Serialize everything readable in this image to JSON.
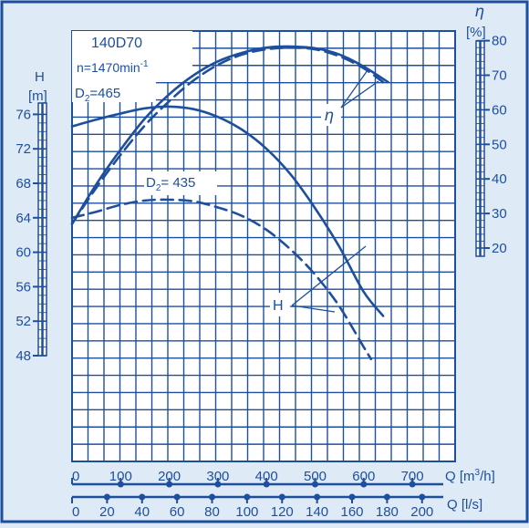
{
  "chart_data": {
    "type": "line",
    "title": "140D70",
    "subtitle": "n=1470min",
    "subtitle_sup": "-1",
    "colors": {
      "ink": "#1e4f9c",
      "paper": "#dfeaf7",
      "grid_bg": "#ffffff"
    },
    "grid": true,
    "x_axes": [
      {
        "label": "Q [m",
        "label_sup": "3",
        "label_suffix": "/h]",
        "range": [
          0,
          800
        ],
        "ticks": [
          0,
          100,
          200,
          300,
          400,
          500,
          600,
          700
        ]
      },
      {
        "label": "Q [l/s]",
        "range": [
          0,
          222.2
        ],
        "ticks": [
          0,
          20,
          40,
          60,
          80,
          100,
          120,
          140,
          160,
          180,
          200
        ]
      }
    ],
    "y_axes": [
      {
        "label_symbol": "H",
        "label_unit": "[m]",
        "range": [
          48,
          78
        ],
        "ticks": [
          48,
          52,
          56,
          60,
          64,
          68,
          72,
          76
        ]
      },
      {
        "label_symbol": "η",
        "label_unit": "[%]",
        "range": [
          20,
          80
        ],
        "ticks": [
          20,
          30,
          40,
          50,
          60,
          70,
          80
        ]
      }
    ],
    "annotations": {
      "d1_prefix": "D",
      "d1_sub": "2",
      "d1_value": "=465",
      "d2_prefix": "D",
      "d2_sub": "2",
      "d2_value": "= 435",
      "head_label": "H",
      "eff_label": "η"
    },
    "series": [
      {
        "name": "H (D2=465)",
        "axis": "H",
        "style": "solid",
        "x": [
          0,
          50,
          100,
          150,
          200,
          250,
          300,
          350,
          400,
          450,
          500,
          550,
          600,
          640
        ],
        "y": [
          74.6,
          75.4,
          76.1,
          76.7,
          76.9,
          76.6,
          75.7,
          74.2,
          72.0,
          69.0,
          65.1,
          60.6,
          55.4,
          52.6
        ]
      },
      {
        "name": "H (D2=435)",
        "axis": "H",
        "style": "dashed",
        "x": [
          0,
          50,
          100,
          150,
          200,
          250,
          300,
          350,
          400,
          450,
          500,
          550,
          600,
          615
        ],
        "y": [
          64.0,
          64.7,
          65.5,
          66.0,
          66.1,
          65.9,
          65.2,
          64.2,
          62.6,
          60.3,
          57.4,
          53.7,
          49.0,
          47.6
        ]
      },
      {
        "name": "η (D2=465)",
        "axis": "η",
        "style": "solid",
        "x": [
          0,
          50,
          100,
          150,
          200,
          250,
          300,
          350,
          400,
          450,
          500,
          550,
          600,
          650
        ],
        "y": [
          27,
          38.5,
          48.5,
          57.5,
          64.5,
          70,
          74,
          76.5,
          78,
          78.3,
          77.8,
          76,
          72.5,
          68
        ]
      },
      {
        "name": "η (D2=435)",
        "axis": "η",
        "style": "dashed",
        "x": [
          0,
          50,
          100,
          150,
          200,
          250,
          300,
          350,
          400,
          450,
          500,
          550,
          600,
          640
        ],
        "y": [
          27,
          37.5,
          47,
          55.5,
          62.5,
          68.5,
          73,
          76,
          77.5,
          78,
          77.5,
          75.5,
          72,
          68
        ]
      }
    ]
  }
}
